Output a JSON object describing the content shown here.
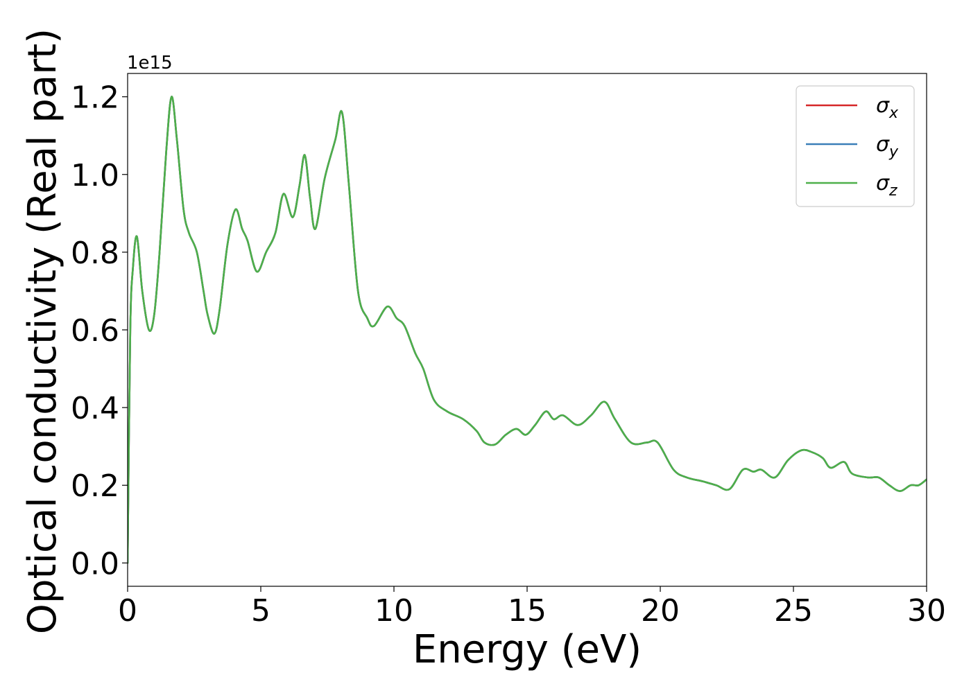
{
  "chart_data": {
    "type": "line",
    "xlabel": "Energy (eV)",
    "ylabel": "Optical conductivity (Real part)",
    "y_offset_text": "1e15",
    "xlim": [
      0,
      30
    ],
    "ylim": [
      -0.06,
      1.26
    ],
    "x_ticks": [
      0,
      5,
      10,
      15,
      20,
      25,
      30
    ],
    "x_tick_labels": [
      "0",
      "5",
      "10",
      "15",
      "20",
      "25",
      "30"
    ],
    "y_ticks": [
      0.0,
      0.2,
      0.4,
      0.6,
      0.8,
      1.0,
      1.2
    ],
    "y_tick_labels": [
      "0.0",
      "0.2",
      "0.4",
      "0.6",
      "0.8",
      "1.0",
      "1.2"
    ],
    "grid": false,
    "legend_position": "top-right",
    "legend": [
      {
        "symbol": "σ",
        "subscript": "x",
        "color": "#d62728"
      },
      {
        "symbol": "σ",
        "subscript": "y",
        "color": "#3a7fb8"
      },
      {
        "symbol": "σ",
        "subscript": "z",
        "color": "#4daf4a"
      }
    ],
    "series_points": [
      [
        0.0,
        0.0
      ],
      [
        0.1,
        0.6
      ],
      [
        0.2,
        0.76
      ],
      [
        0.35,
        0.84
      ],
      [
        0.55,
        0.7
      ],
      [
        0.8,
        0.6
      ],
      [
        1.0,
        0.64
      ],
      [
        1.2,
        0.8
      ],
      [
        1.45,
        1.06
      ],
      [
        1.65,
        1.2
      ],
      [
        1.85,
        1.09
      ],
      [
        2.1,
        0.91
      ],
      [
        2.3,
        0.85
      ],
      [
        2.6,
        0.8
      ],
      [
        2.85,
        0.7
      ],
      [
        3.0,
        0.64
      ],
      [
        3.25,
        0.59
      ],
      [
        3.45,
        0.65
      ],
      [
        3.75,
        0.82
      ],
      [
        4.05,
        0.91
      ],
      [
        4.3,
        0.86
      ],
      [
        4.5,
        0.83
      ],
      [
        4.85,
        0.75
      ],
      [
        5.2,
        0.8
      ],
      [
        5.55,
        0.85
      ],
      [
        5.85,
        0.95
      ],
      [
        6.2,
        0.89
      ],
      [
        6.45,
        0.97
      ],
      [
        6.65,
        1.05
      ],
      [
        6.85,
        0.94
      ],
      [
        7.05,
        0.86
      ],
      [
        7.4,
        0.99
      ],
      [
        7.8,
        1.09
      ],
      [
        8.05,
        1.16
      ],
      [
        8.3,
        0.98
      ],
      [
        8.65,
        0.7
      ],
      [
        9.0,
        0.63
      ],
      [
        9.25,
        0.61
      ],
      [
        9.75,
        0.66
      ],
      [
        10.1,
        0.63
      ],
      [
        10.4,
        0.61
      ],
      [
        10.8,
        0.54
      ],
      [
        11.1,
        0.5
      ],
      [
        11.5,
        0.42
      ],
      [
        12.0,
        0.39
      ],
      [
        12.6,
        0.37
      ],
      [
        13.1,
        0.34
      ],
      [
        13.4,
        0.31
      ],
      [
        13.8,
        0.305
      ],
      [
        14.2,
        0.33
      ],
      [
        14.6,
        0.345
      ],
      [
        14.95,
        0.33
      ],
      [
        15.3,
        0.355
      ],
      [
        15.7,
        0.39
      ],
      [
        16.0,
        0.37
      ],
      [
        16.35,
        0.38
      ],
      [
        16.9,
        0.355
      ],
      [
        17.4,
        0.38
      ],
      [
        17.9,
        0.415
      ],
      [
        18.3,
        0.37
      ],
      [
        18.9,
        0.31
      ],
      [
        19.5,
        0.31
      ],
      [
        19.9,
        0.31
      ],
      [
        20.5,
        0.24
      ],
      [
        21.0,
        0.22
      ],
      [
        21.6,
        0.21
      ],
      [
        22.1,
        0.2
      ],
      [
        22.6,
        0.19
      ],
      [
        23.1,
        0.24
      ],
      [
        23.5,
        0.235
      ],
      [
        23.8,
        0.24
      ],
      [
        24.3,
        0.22
      ],
      [
        24.8,
        0.265
      ],
      [
        25.3,
        0.29
      ],
      [
        25.7,
        0.285
      ],
      [
        26.1,
        0.27
      ],
      [
        26.4,
        0.245
      ],
      [
        26.9,
        0.26
      ],
      [
        27.2,
        0.23
      ],
      [
        27.8,
        0.22
      ],
      [
        28.2,
        0.22
      ],
      [
        28.6,
        0.2
      ],
      [
        29.0,
        0.185
      ],
      [
        29.4,
        0.2
      ],
      [
        29.7,
        0.2
      ],
      [
        30.0,
        0.215
      ]
    ],
    "series": [
      {
        "subscript": "x",
        "color": "#d62728"
      },
      {
        "subscript": "y",
        "color": "#3a7fb8"
      },
      {
        "subscript": "z",
        "color": "#4daf4a"
      }
    ]
  }
}
